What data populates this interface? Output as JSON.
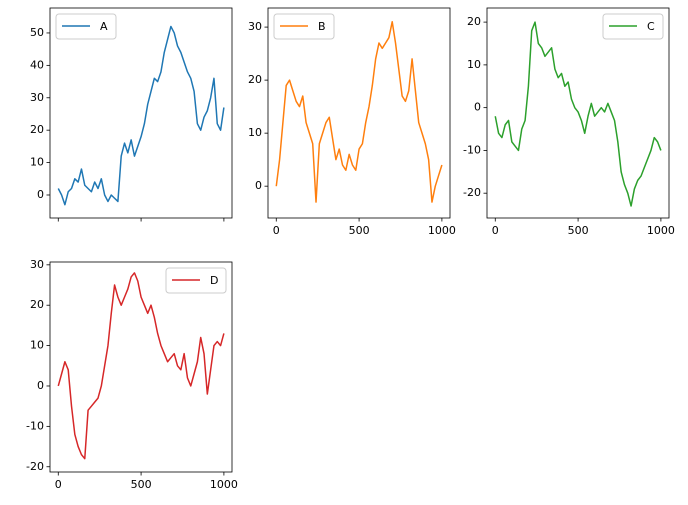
{
  "chart_data": [
    {
      "type": "line",
      "xlim": [
        -49.95,
        1048.95
      ],
      "xticks": [
        0,
        500,
        1000
      ],
      "show_xtick_labels": false,
      "ylim": [
        -7.1,
        57.7
      ],
      "yticks": [
        0,
        10,
        20,
        30,
        40,
        50
      ],
      "legend_loc": "upper left",
      "x": [
        0,
        20,
        40,
        60,
        80,
        100,
        120,
        140,
        160,
        180,
        200,
        220,
        240,
        260,
        280,
        300,
        320,
        340,
        360,
        380,
        400,
        420,
        440,
        460,
        480,
        500,
        520,
        540,
        560,
        580,
        600,
        620,
        640,
        660,
        680,
        700,
        720,
        740,
        760,
        780,
        800,
        820,
        840,
        860,
        880,
        900,
        920,
        940,
        960,
        980,
        1000
      ],
      "series": [
        {
          "name": "A",
          "color": "#1f77b4",
          "values": [
            2,
            0,
            -3,
            1,
            2,
            5,
            4,
            8,
            3,
            2,
            1,
            4,
            2,
            5,
            0,
            -2,
            0,
            -1,
            -2,
            12,
            16,
            13,
            17,
            12,
            15,
            18,
            22,
            28,
            32,
            36,
            35,
            38,
            44,
            48,
            52,
            50,
            46,
            44,
            41,
            38,
            36,
            32,
            22,
            20,
            24,
            26,
            30,
            36,
            22,
            20,
            27
          ]
        }
      ]
    },
    {
      "type": "line",
      "xlim": [
        -49.95,
        1048.95
      ],
      "xticks": [
        0,
        500,
        1000
      ],
      "show_xtick_labels": true,
      "ylim": [
        -6.0,
        33.6
      ],
      "yticks": [
        0,
        10,
        20,
        30
      ],
      "legend_loc": "upper left",
      "x": [
        0,
        20,
        40,
        60,
        80,
        100,
        120,
        140,
        160,
        180,
        200,
        220,
        240,
        260,
        280,
        300,
        320,
        340,
        360,
        380,
        400,
        420,
        440,
        460,
        480,
        500,
        520,
        540,
        560,
        580,
        600,
        620,
        640,
        660,
        680,
        700,
        720,
        740,
        760,
        780,
        800,
        820,
        840,
        860,
        880,
        900,
        920,
        940,
        960,
        980,
        1000
      ],
      "series": [
        {
          "name": "B",
          "color": "#ff7f0e",
          "values": [
            0,
            5,
            12,
            19,
            20,
            18,
            16,
            15,
            17,
            12,
            10,
            8,
            -3,
            8,
            10,
            12,
            13,
            9,
            5,
            7,
            4,
            3,
            6,
            4,
            3,
            7,
            8,
            12,
            15,
            19,
            24,
            27,
            26,
            27,
            28,
            31,
            27,
            22,
            17,
            16,
            18,
            24,
            18,
            12,
            10,
            8,
            5,
            -3,
            0,
            2,
            4
          ]
        }
      ]
    },
    {
      "type": "line",
      "xlim": [
        -49.95,
        1048.95
      ],
      "xticks": [
        0,
        500,
        1000
      ],
      "show_xtick_labels": true,
      "ylim": [
        -25.8,
        23.3
      ],
      "yticks": [
        -20,
        -10,
        0,
        10,
        20
      ],
      "legend_loc": "upper right",
      "x": [
        0,
        20,
        40,
        60,
        80,
        100,
        120,
        140,
        160,
        180,
        200,
        220,
        240,
        260,
        280,
        300,
        320,
        340,
        360,
        380,
        400,
        420,
        440,
        460,
        480,
        500,
        520,
        540,
        560,
        580,
        600,
        620,
        640,
        660,
        680,
        700,
        720,
        740,
        760,
        780,
        800,
        820,
        840,
        860,
        880,
        900,
        920,
        940,
        960,
        980,
        1000
      ],
      "series": [
        {
          "name": "C",
          "color": "#2ca02c",
          "values": [
            -2,
            -6,
            -7,
            -4,
            -3,
            -8,
            -9,
            -10,
            -5,
            -3,
            5,
            18,
            20,
            15,
            14,
            12,
            13,
            14,
            9,
            7,
            8,
            5,
            6,
            2,
            0,
            -1,
            -3,
            -6,
            -2,
            1,
            -2,
            -1,
            0,
            -1,
            1,
            -1,
            -3,
            -8,
            -15,
            -18,
            -20,
            -23,
            -19,
            -17,
            -16,
            -14,
            -12,
            -10,
            -7,
            -8,
            -10
          ]
        }
      ]
    },
    {
      "type": "line",
      "xlim": [
        -49.95,
        1048.95
      ],
      "xticks": [
        0,
        500,
        1000
      ],
      "show_xtick_labels": true,
      "ylim": [
        -21.3,
        30.7
      ],
      "yticks": [
        -20,
        -10,
        0,
        10,
        20,
        30
      ],
      "legend_loc": "upper right",
      "x": [
        0,
        20,
        40,
        60,
        80,
        100,
        120,
        140,
        160,
        180,
        200,
        220,
        240,
        260,
        280,
        300,
        320,
        340,
        360,
        380,
        400,
        420,
        440,
        460,
        480,
        500,
        520,
        540,
        560,
        580,
        600,
        620,
        640,
        660,
        680,
        700,
        720,
        740,
        760,
        780,
        800,
        820,
        840,
        860,
        880,
        900,
        920,
        940,
        960,
        980,
        1000
      ],
      "series": [
        {
          "name": "D",
          "color": "#d62728",
          "values": [
            0,
            3,
            6,
            4,
            -5,
            -12,
            -15,
            -17,
            -18,
            -6,
            -5,
            -4,
            -3,
            0,
            5,
            10,
            18,
            25,
            22,
            20,
            22,
            24,
            27,
            28,
            26,
            22,
            20,
            18,
            20,
            17,
            13,
            10,
            8,
            6,
            7,
            8,
            5,
            4,
            8,
            2,
            0,
            3,
            6,
            12,
            8,
            -2,
            4,
            10,
            11,
            10,
            13
          ]
        }
      ]
    }
  ]
}
